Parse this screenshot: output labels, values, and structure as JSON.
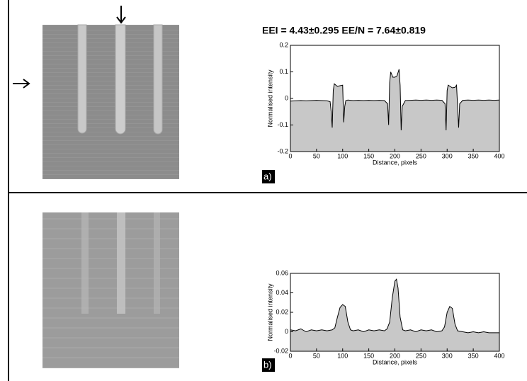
{
  "heading": "EEI = 4.43±0.295 EE/N = 7.64±0.819",
  "chart_data": [
    {
      "type": "line",
      "label": "a)",
      "xlabel": "Distance, pixels",
      "ylabel": "Normalised intensity",
      "color": "#000000",
      "fill_color": "#c8c8c8",
      "xlim": [
        0,
        400
      ],
      "ylim": [
        -0.2,
        0.2
      ],
      "xticks": [
        0,
        50,
        100,
        150,
        200,
        250,
        300,
        350,
        400
      ],
      "yticks": [
        -0.2,
        -0.1,
        0,
        0.1,
        0.2
      ],
      "x": [
        0,
        10,
        20,
        30,
        40,
        50,
        60,
        70,
        76,
        78,
        80,
        82,
        84,
        90,
        95,
        100,
        102,
        104,
        106,
        110,
        120,
        130,
        140,
        150,
        160,
        170,
        180,
        186,
        188,
        190,
        192,
        196,
        200,
        204,
        208,
        210,
        212,
        214,
        220,
        230,
        240,
        250,
        260,
        270,
        280,
        290,
        296,
        298,
        300,
        302,
        306,
        310,
        315,
        318,
        320,
        322,
        324,
        330,
        340,
        350,
        360,
        370,
        380,
        390,
        400
      ],
      "values": [
        -0.01,
        -0.009,
        -0.008,
        -0.009,
        -0.008,
        -0.007,
        -0.008,
        -0.009,
        -0.012,
        -0.05,
        -0.11,
        0.03,
        0.055,
        0.045,
        0.048,
        0.05,
        -0.09,
        -0.03,
        -0.008,
        -0.006,
        -0.008,
        -0.007,
        -0.008,
        -0.007,
        -0.008,
        -0.007,
        -0.008,
        -0.02,
        -0.1,
        0.06,
        0.1,
        0.08,
        0.08,
        0.085,
        0.11,
        0.05,
        -0.12,
        -0.03,
        -0.008,
        -0.007,
        -0.006,
        -0.007,
        -0.006,
        -0.007,
        -0.006,
        -0.007,
        -0.02,
        -0.12,
        0.03,
        0.05,
        0.045,
        0.04,
        0.042,
        0.05,
        -0.03,
        -0.11,
        -0.02,
        -0.007,
        -0.006,
        -0.007,
        -0.006,
        -0.007,
        -0.006,
        -0.007,
        -0.006
      ]
    },
    {
      "type": "line",
      "label": "b)",
      "xlabel": "Distance, pixels",
      "ylabel": "Normalised intensity",
      "color": "#000000",
      "fill_color": "#c8c8c8",
      "xlim": [
        0,
        400
      ],
      "ylim": [
        -0.02,
        0.06
      ],
      "xticks": [
        0,
        50,
        100,
        150,
        200,
        250,
        300,
        350,
        400
      ],
      "yticks": [
        -0.02,
        0,
        0.02,
        0.04,
        0.06
      ],
      "x": [
        0,
        10,
        20,
        30,
        40,
        50,
        60,
        70,
        80,
        85,
        90,
        95,
        100,
        105,
        110,
        115,
        120,
        130,
        140,
        150,
        160,
        170,
        180,
        185,
        190,
        195,
        200,
        203,
        206,
        210,
        215,
        220,
        230,
        240,
        250,
        260,
        270,
        280,
        290,
        295,
        300,
        305,
        310,
        315,
        320,
        330,
        340,
        350,
        360,
        370,
        380,
        390,
        400
      ],
      "values": [
        0.002,
        0.001,
        0.003,
        0.0,
        0.002,
        0.001,
        0.002,
        0.001,
        0.002,
        0.004,
        0.015,
        0.025,
        0.028,
        0.026,
        0.01,
        0.002,
        0.001,
        0.002,
        0.0,
        0.002,
        0.001,
        0.002,
        0.001,
        0.003,
        0.01,
        0.035,
        0.052,
        0.054,
        0.045,
        0.015,
        0.002,
        0.001,
        0.002,
        0.0,
        0.002,
        0.001,
        0.002,
        0.0,
        0.001,
        0.005,
        0.02,
        0.026,
        0.024,
        0.008,
        0.001,
        0.0,
        -0.001,
        0.0,
        -0.001,
        0.0,
        -0.001,
        -0.001,
        -0.001
      ]
    }
  ]
}
